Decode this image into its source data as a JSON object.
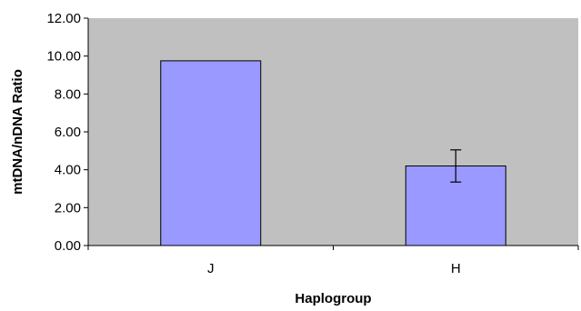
{
  "chart_data": {
    "type": "bar",
    "categories": [
      "J",
      "H"
    ],
    "values": [
      9.75,
      4.2
    ],
    "error": [
      null,
      0.85
    ],
    "xlabel": "Haplogroup",
    "ylabel": "mtDNA/nDNA Ratio",
    "ylim": [
      0,
      12
    ],
    "yticks": [
      "0.00",
      "2.00",
      "4.00",
      "6.00",
      "8.00",
      "10.00",
      "12.00"
    ],
    "grid": false,
    "legend": "none",
    "colors": {
      "plot_background": "#c0c0c0",
      "bar_fill": "#9999ff",
      "bar_stroke": "#000000",
      "axis": "#000000"
    }
  }
}
